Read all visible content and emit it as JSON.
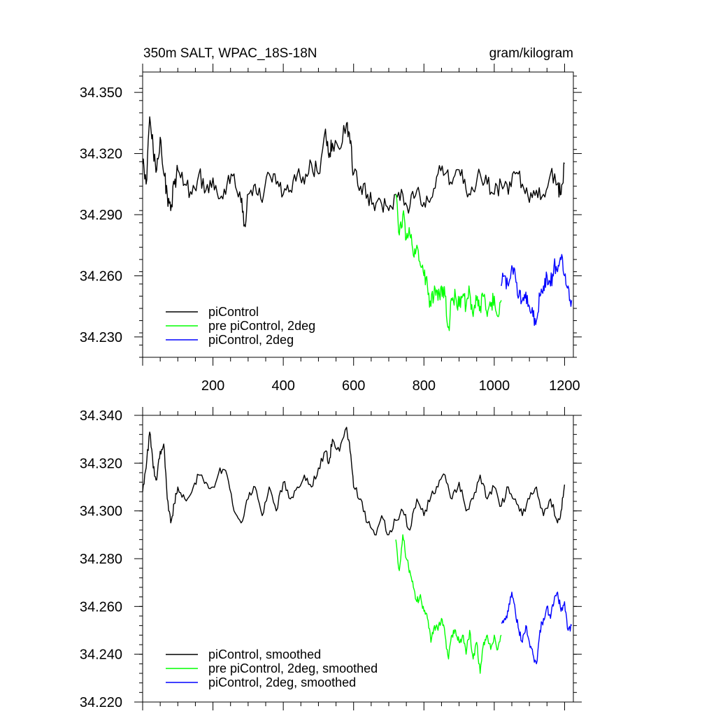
{
  "chart_data": [
    {
      "type": "line",
      "title": "350m SALT, WPAC_18S-18N",
      "subtitle_right": "gram/kilogram",
      "xlabel": "",
      "ylabel": "",
      "xlim": [
        0,
        1225
      ],
      "ylim": [
        34.22,
        34.36
      ],
      "xticks": [
        200,
        400,
        600,
        800,
        1000,
        1200
      ],
      "xtick_labels": [
        "200",
        "400",
        "600",
        "800",
        "1000",
        "1200"
      ],
      "yticks": [
        34.23,
        34.26,
        34.29,
        34.32,
        34.35
      ],
      "ytick_labels": [
        "34.230",
        "34.260",
        "34.290",
        "34.320",
        "34.350"
      ],
      "grid": false,
      "legend_position": "bottom-left",
      "series": [
        {
          "name": "piControl",
          "color": "#000000",
          "x": [
            0,
            10,
            20,
            30,
            40,
            50,
            60,
            70,
            80,
            90,
            100,
            120,
            140,
            160,
            180,
            200,
            220,
            240,
            260,
            280,
            290,
            300,
            320,
            340,
            360,
            380,
            400,
            420,
            440,
            460,
            480,
            500,
            520,
            530,
            540,
            560,
            580,
            590,
            600,
            620,
            640,
            660,
            680,
            700,
            720,
            740,
            760,
            780,
            800,
            820,
            840,
            860,
            880,
            900,
            920,
            940,
            960,
            980,
            1000,
            1020,
            1040,
            1060,
            1080,
            1100,
            1120,
            1140,
            1160,
            1180,
            1190,
            1200
          ],
          "values": [
            34.315,
            34.305,
            34.338,
            34.322,
            34.312,
            34.328,
            34.31,
            34.3,
            34.292,
            34.305,
            34.312,
            34.305,
            34.3,
            34.31,
            34.302,
            34.308,
            34.298,
            34.305,
            34.31,
            34.296,
            34.285,
            34.3,
            34.305,
            34.296,
            34.31,
            34.305,
            34.3,
            34.302,
            34.31,
            34.305,
            34.315,
            34.31,
            34.332,
            34.318,
            34.325,
            34.322,
            34.335,
            34.325,
            34.31,
            34.304,
            34.3,
            34.292,
            34.295,
            34.292,
            34.3,
            34.3,
            34.294,
            34.302,
            34.296,
            34.298,
            34.31,
            34.31,
            34.305,
            34.312,
            34.302,
            34.302,
            34.31,
            34.305,
            34.3,
            34.305,
            34.3,
            34.31,
            34.305,
            34.296,
            34.302,
            34.3,
            34.31,
            34.305,
            34.3,
            34.315
          ]
        },
        {
          "name": "pre piControl, 2deg",
          "color": "#00ff00",
          "x": [
            720,
            730,
            740,
            750,
            760,
            770,
            780,
            790,
            800,
            810,
            820,
            830,
            840,
            850,
            860,
            870,
            880,
            890,
            900,
            910,
            920,
            930,
            940,
            950,
            960,
            970,
            980,
            990,
            1000,
            1010,
            1020
          ],
          "values": [
            34.3,
            34.28,
            34.29,
            34.278,
            34.28,
            34.27,
            34.275,
            34.265,
            34.26,
            34.255,
            34.245,
            34.255,
            34.248,
            34.255,
            34.25,
            34.235,
            34.248,
            34.25,
            34.245,
            34.25,
            34.245,
            34.252,
            34.24,
            34.248,
            34.245,
            34.25,
            34.24,
            34.245,
            34.25,
            34.24,
            34.248
          ]
        },
        {
          "name": "piControl, 2deg",
          "color": "#0000ff",
          "x": [
            1020,
            1030,
            1040,
            1050,
            1060,
            1070,
            1080,
            1090,
            1100,
            1110,
            1120,
            1130,
            1140,
            1150,
            1160,
            1170,
            1180,
            1190,
            1200,
            1210,
            1220
          ],
          "values": [
            34.255,
            34.26,
            34.255,
            34.265,
            34.26,
            34.25,
            34.248,
            34.252,
            34.245,
            34.24,
            34.238,
            34.25,
            34.255,
            34.26,
            34.255,
            34.265,
            34.262,
            34.268,
            34.26,
            34.255,
            34.248
          ]
        }
      ]
    },
    {
      "type": "line",
      "title": "",
      "xlabel": "",
      "ylabel": "",
      "xlim": [
        0,
        1225
      ],
      "ylim": [
        34.22,
        34.34
      ],
      "yticks": [
        34.22,
        34.24,
        34.26,
        34.28,
        34.3,
        34.32,
        34.34
      ],
      "ytick_labels": [
        "34.220",
        "34.240",
        "34.260",
        "34.280",
        "34.300",
        "34.320",
        "34.340"
      ],
      "grid": false,
      "legend_position": "bottom-left",
      "series": [
        {
          "name": "piControl, smoothed",
          "color": "#000000",
          "x": [
            0,
            10,
            20,
            30,
            40,
            50,
            60,
            70,
            80,
            90,
            100,
            120,
            140,
            160,
            180,
            200,
            220,
            240,
            260,
            280,
            300,
            320,
            340,
            360,
            380,
            400,
            420,
            440,
            460,
            480,
            500,
            520,
            530,
            540,
            560,
            580,
            590,
            600,
            620,
            640,
            660,
            680,
            700,
            720,
            740,
            760,
            780,
            800,
            820,
            840,
            860,
            880,
            900,
            920,
            940,
            960,
            980,
            1000,
            1020,
            1040,
            1060,
            1080,
            1100,
            1120,
            1140,
            1160,
            1180,
            1190,
            1200
          ],
          "values": [
            34.308,
            34.318,
            34.333,
            34.318,
            34.313,
            34.325,
            34.328,
            34.305,
            34.295,
            34.303,
            34.31,
            34.305,
            34.308,
            34.315,
            34.312,
            34.31,
            34.318,
            34.315,
            34.3,
            34.295,
            34.305,
            34.31,
            34.298,
            34.31,
            34.3,
            34.312,
            34.305,
            34.31,
            34.315,
            34.31,
            34.318,
            34.325,
            34.32,
            34.33,
            34.325,
            34.335,
            34.325,
            34.31,
            34.305,
            34.295,
            34.29,
            34.298,
            34.29,
            34.296,
            34.3,
            34.292,
            34.305,
            34.298,
            34.306,
            34.31,
            34.315,
            34.305,
            34.312,
            34.3,
            34.305,
            34.315,
            34.305,
            34.31,
            34.302,
            34.31,
            34.305,
            34.298,
            34.305,
            34.31,
            34.298,
            34.305,
            34.295,
            34.3,
            34.311
          ]
        },
        {
          "name": "pre piControl, 2deg, smoothed",
          "color": "#00ff00",
          "x": [
            720,
            730,
            740,
            750,
            760,
            770,
            780,
            790,
            800,
            810,
            820,
            830,
            840,
            850,
            860,
            870,
            880,
            890,
            900,
            910,
            920,
            930,
            940,
            950,
            960,
            970,
            980,
            990,
            1000,
            1010,
            1020
          ],
          "values": [
            34.288,
            34.275,
            34.29,
            34.28,
            34.275,
            34.268,
            34.262,
            34.265,
            34.258,
            34.255,
            34.245,
            34.252,
            34.25,
            34.255,
            34.248,
            34.238,
            34.248,
            34.25,
            34.245,
            34.248,
            34.24,
            34.25,
            34.238,
            34.245,
            34.232,
            34.245,
            34.248,
            34.242,
            34.248,
            34.242,
            34.248
          ]
        },
        {
          "name": "piControl, 2deg, smoothed",
          "color": "#0000ff",
          "x": [
            1020,
            1030,
            1040,
            1050,
            1060,
            1070,
            1080,
            1090,
            1100,
            1110,
            1120,
            1130,
            1140,
            1150,
            1160,
            1170,
            1180,
            1190,
            1200,
            1210,
            1220
          ],
          "values": [
            34.253,
            34.255,
            34.258,
            34.266,
            34.258,
            34.25,
            34.245,
            34.252,
            34.245,
            34.24,
            34.236,
            34.25,
            34.255,
            34.26,
            34.255,
            34.262,
            34.266,
            34.258,
            34.262,
            34.25,
            34.252
          ]
        }
      ]
    }
  ]
}
